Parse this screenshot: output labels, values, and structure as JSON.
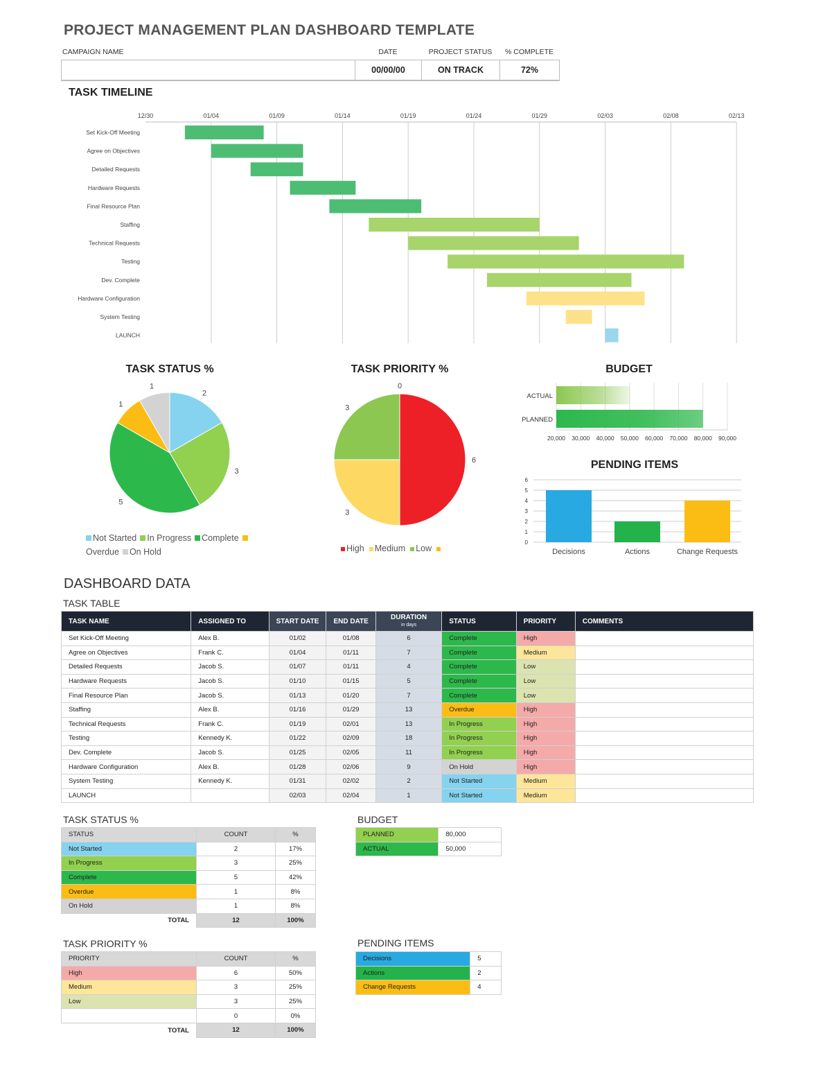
{
  "title": "PROJECT MANAGEMENT PLAN DASHBOARD TEMPLATE",
  "header": {
    "campaign_label": "CAMPAIGN NAME",
    "campaign_value": "",
    "date_label": "DATE",
    "date_value": "00/00/00",
    "status_label": "PROJECT STATUS",
    "status_value": "ON TRACK",
    "complete_label": "% COMPLETE",
    "complete_value": "72%"
  },
  "colors": {
    "complete": "#2db84c",
    "in_progress": "#92d050",
    "overdue": "#fbbd13",
    "on_hold": "#d3d3d3",
    "not_started": "#85d3ee",
    "high": "#f4aaa9",
    "medium": "#fde59a",
    "low": "#dbe4b0",
    "red": "#ee2027",
    "yellow": "#fdd964",
    "green": "#8cc751",
    "gantt_done": "#4dbd74",
    "gantt_prog": "#a8d46c",
    "gantt_wait": "#fde28a",
    "gantt_launch": "#9ad7ef",
    "decisions": "#29a9e1",
    "actions": "#23b34a",
    "change": "#fbbd13"
  },
  "chart_data": [
    {
      "type": "gantt",
      "title": "TASK TIMELINE",
      "x_ticks": [
        "12/30",
        "01/04",
        "01/09",
        "01/14",
        "01/19",
        "01/24",
        "01/29",
        "02/03",
        "02/08",
        "02/13"
      ],
      "tasks": [
        {
          "name": "Set Kick-Off Meeting",
          "start": "01/02",
          "end": "01/08",
          "color": "gantt_done"
        },
        {
          "name": "Agree on Objectives",
          "start": "01/04",
          "end": "01/11",
          "color": "gantt_done"
        },
        {
          "name": "Detailed Requests",
          "start": "01/07",
          "end": "01/11",
          "color": "gantt_done"
        },
        {
          "name": "Hardware Requests",
          "start": "01/10",
          "end": "01/15",
          "color": "gantt_done"
        },
        {
          "name": "Final Resource Plan",
          "start": "01/13",
          "end": "01/20",
          "color": "gantt_done"
        },
        {
          "name": "Staffing",
          "start": "01/16",
          "end": "01/29",
          "color": "gantt_prog"
        },
        {
          "name": "Technical Requests",
          "start": "01/19",
          "end": "02/01",
          "color": "gantt_prog"
        },
        {
          "name": "Testing",
          "start": "01/22",
          "end": "02/09",
          "color": "gantt_prog"
        },
        {
          "name": "Dev. Complete",
          "start": "01/25",
          "end": "02/05",
          "color": "gantt_prog"
        },
        {
          "name": "Hardware Configuration",
          "start": "01/28",
          "end": "02/06",
          "color": "gantt_wait"
        },
        {
          "name": "System Testing",
          "start": "01/31",
          "end": "02/02",
          "color": "gantt_wait"
        },
        {
          "name": "LAUNCH",
          "start": "02/03",
          "end": "02/04",
          "color": "gantt_launch"
        }
      ]
    },
    {
      "type": "pie",
      "title": "TASK STATUS %",
      "slices": [
        {
          "name": "Not Started",
          "value": 2,
          "color": "#85d3ee"
        },
        {
          "name": "In Progress",
          "value": 3,
          "color": "#92d050"
        },
        {
          "name": "Complete",
          "value": 5,
          "color": "#2db84c"
        },
        {
          "name": "Overdue",
          "value": 1,
          "color": "#fbbd13"
        },
        {
          "name": "On Hold",
          "value": 1,
          "color": "#d3d3d3"
        }
      ],
      "legend": "bottom"
    },
    {
      "type": "pie",
      "title": "TASK PRIORITY %",
      "slices": [
        {
          "name": "High",
          "value": 6,
          "color": "#ee2027"
        },
        {
          "name": "Medium",
          "value": 3,
          "color": "#fdd964"
        },
        {
          "name": "Low",
          "value": 3,
          "color": "#8cc751"
        },
        {
          "name": "",
          "value": 0,
          "color": "#fbbd13"
        }
      ],
      "legend": "bottom"
    },
    {
      "type": "bar",
      "orientation": "horizontal",
      "title": "BUDGET",
      "categories": [
        "ACTUAL",
        "PLANNED"
      ],
      "values": [
        50000,
        80000
      ],
      "xlim": [
        20000,
        90000
      ],
      "x_ticks": [
        "20,000",
        "30,000",
        "40,000",
        "50,000",
        "60,000",
        "70,000",
        "80,000",
        "90,000"
      ],
      "grid": true
    },
    {
      "type": "bar",
      "title": "PENDING ITEMS",
      "categories": [
        "Decisions",
        "Actions",
        "Change Requests"
      ],
      "values": [
        5,
        2,
        4
      ],
      "ylim": [
        0,
        6
      ],
      "y_ticks": [
        "0",
        "1",
        "2",
        "3",
        "4",
        "5",
        "6"
      ],
      "grid": true
    }
  ],
  "dashboard_title": "DASHBOARD DATA",
  "task_table": {
    "title": "TASK TABLE",
    "headers": [
      "TASK NAME",
      "ASSIGNED TO",
      "START DATE",
      "END DATE",
      "DURATION",
      "STATUS",
      "PRIORITY",
      "COMMENTS"
    ],
    "duration_sub": "in days",
    "rows": [
      [
        "Set Kick-Off Meeting",
        "Alex B.",
        "01/02",
        "01/08",
        "6",
        "Complete",
        "High",
        ""
      ],
      [
        "Agree on Objectives",
        "Frank C.",
        "01/04",
        "01/11",
        "7",
        "Complete",
        "Medium",
        ""
      ],
      [
        "Detailed Requests",
        "Jacob S.",
        "01/07",
        "01/11",
        "4",
        "Complete",
        "Low",
        ""
      ],
      [
        "Hardware Requests",
        "Jacob S.",
        "01/10",
        "01/15",
        "5",
        "Complete",
        "Low",
        ""
      ],
      [
        "Final Resource Plan",
        "Jacob S.",
        "01/13",
        "01/20",
        "7",
        "Complete",
        "Low",
        ""
      ],
      [
        "Staffing",
        "Alex B.",
        "01/16",
        "01/29",
        "13",
        "Overdue",
        "High",
        ""
      ],
      [
        "Technical Requests",
        "Frank C.",
        "01/19",
        "02/01",
        "13",
        "In Progress",
        "High",
        ""
      ],
      [
        "Testing",
        "Kennedy K.",
        "01/22",
        "02/09",
        "18",
        "In Progress",
        "High",
        ""
      ],
      [
        "Dev. Complete",
        "Jacob S.",
        "01/25",
        "02/05",
        "11",
        "In Progress",
        "High",
        ""
      ],
      [
        "Hardware Configuration",
        "Alex B.",
        "01/28",
        "02/06",
        "9",
        "On Hold",
        "High",
        ""
      ],
      [
        "System Testing",
        "Kennedy K.",
        "01/31",
        "02/02",
        "2",
        "Not Started",
        "Medium",
        ""
      ],
      [
        "LAUNCH",
        "",
        "02/03",
        "02/04",
        "1",
        "Not Started",
        "Medium",
        ""
      ]
    ]
  },
  "status_table": {
    "title": "TASK STATUS %",
    "headers": [
      "STATUS",
      "COUNT",
      "%"
    ],
    "rows": [
      [
        "Not Started",
        "2",
        "17%"
      ],
      [
        "In Progress",
        "3",
        "25%"
      ],
      [
        "Complete",
        "5",
        "42%"
      ],
      [
        "Overdue",
        "1",
        "8%"
      ],
      [
        "On Hold",
        "1",
        "8%"
      ]
    ],
    "total": [
      "TOTAL",
      "12",
      "100%"
    ]
  },
  "priority_table": {
    "title": "TASK PRIORITY %",
    "headers": [
      "PRIORITY",
      "COUNT",
      "%"
    ],
    "rows": [
      [
        "High",
        "6",
        "50%"
      ],
      [
        "Medium",
        "3",
        "25%"
      ],
      [
        "Low",
        "3",
        "25%"
      ],
      [
        "",
        "0",
        "0%"
      ]
    ],
    "total": [
      "TOTAL",
      "12",
      "100%"
    ]
  },
  "budget_table": {
    "title": "BUDGET",
    "rows": [
      [
        "PLANNED",
        "80,000"
      ],
      [
        "ACTUAL",
        "50,000"
      ]
    ]
  },
  "pending_table": {
    "title": "PENDING ITEMS",
    "rows": [
      [
        "Decisions",
        "5"
      ],
      [
        "Actions",
        "2"
      ],
      [
        "Change Requests",
        "4"
      ]
    ]
  }
}
